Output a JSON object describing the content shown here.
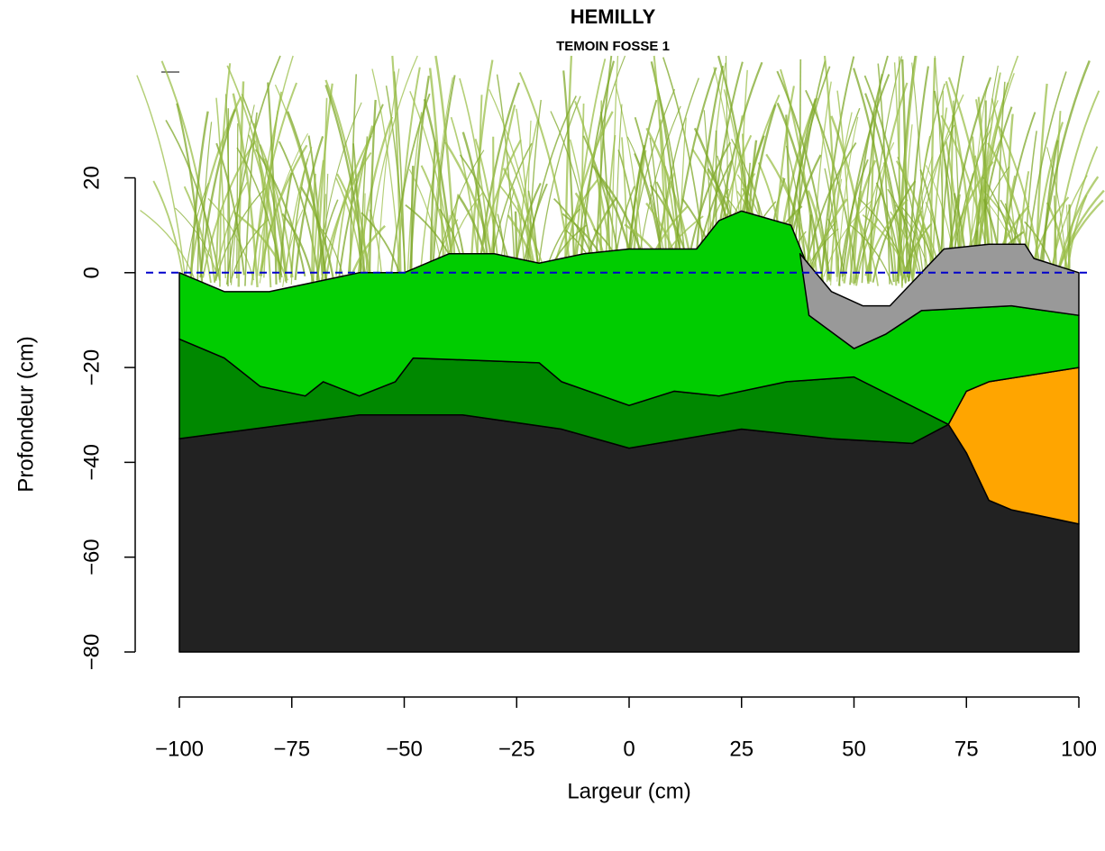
{
  "chart_data": {
    "type": "layers",
    "title": "HEMILLY",
    "subtitle": "TEMOIN FOSSE 1",
    "x_label": "Largeur (cm)",
    "y_label": "Profondeur (cm)",
    "xlim": [
      -100,
      100
    ],
    "ylim": [
      -80,
      20
    ],
    "xticks": [
      {
        "value": -100,
        "label": "−100"
      },
      {
        "value": -75,
        "label": "−75"
      },
      {
        "value": -50,
        "label": "−50"
      },
      {
        "value": -25,
        "label": "−25"
      },
      0,
      25,
      50,
      75,
      100
    ],
    "yticks": [
      {
        "value": -80,
        "label": "−80"
      },
      {
        "value": -60,
        "label": "−60"
      },
      {
        "value": -40,
        "label": "−40"
      },
      {
        "value": -20,
        "label": "−20"
      },
      0,
      20
    ],
    "reference_line": {
      "value": 0,
      "color": "#0000cc"
    },
    "series": [
      {
        "color": "#222222",
        "x": [
          -100,
          -60,
          -37,
          -15,
          0,
          25,
          45,
          63,
          71,
          75,
          80,
          85,
          100,
          100,
          -100
        ],
        "values": [
          -35,
          -30,
          -30,
          -33,
          -37,
          -33,
          -35,
          -36,
          -32,
          -38,
          -48,
          -50,
          -53,
          -80,
          -80
        ]
      },
      {
        "color": "#ffa500",
        "x": [
          71,
          75,
          80,
          100,
          100,
          85,
          80,
          75
        ],
        "values": [
          -32,
          -25,
          -23,
          -20,
          -53,
          -50,
          -48,
          -38
        ]
      },
      {
        "color": "#008800",
        "x": [
          -100,
          -90,
          -82,
          -72,
          -68,
          -60,
          -52,
          -48,
          -20,
          -15,
          0,
          10,
          20,
          35,
          50,
          71,
          63,
          45,
          25,
          0,
          -15,
          -37,
          -60,
          -100
        ],
        "values": [
          -14,
          -18,
          -24,
          -26,
          -23,
          -26,
          -23,
          -18,
          -19,
          -23,
          -28,
          -25,
          -26,
          -23,
          -22,
          -32,
          -36,
          -35,
          -33,
          -37,
          -33,
          -30,
          -30,
          -35
        ]
      },
      {
        "color": "#00cc00",
        "x": [
          -100,
          -90,
          -80,
          -70,
          -60,
          -50,
          -40,
          -30,
          -20,
          -10,
          0,
          15,
          20,
          25,
          36,
          39,
          40,
          50,
          57,
          65,
          85,
          100,
          100,
          80,
          75,
          71,
          50,
          35,
          20,
          10,
          0,
          -15,
          -20,
          -48,
          -52,
          -60,
          -68,
          -72,
          -82,
          -90,
          -100
        ],
        "values": [
          0,
          -4,
          -4,
          -2,
          0,
          0,
          4,
          4,
          2,
          4,
          5,
          5,
          11,
          13,
          10,
          3,
          -9,
          -16,
          -13,
          -8,
          -7,
          -9,
          -20,
          -23,
          -25,
          -32,
          -22,
          -23,
          -26,
          -25,
          -28,
          -23,
          -19,
          -18,
          -23,
          -26,
          -23,
          -26,
          -24,
          -18,
          -14
        ]
      },
      {
        "color": "#999999",
        "x": [
          38,
          45,
          52,
          58,
          70,
          80,
          88,
          90,
          100,
          100,
          85,
          65,
          57,
          50,
          40
        ],
        "values": [
          4,
          -4,
          -7,
          -7,
          5,
          6,
          6,
          3,
          0,
          -9,
          -7,
          -8,
          -13,
          -16,
          -9
        ]
      }
    ]
  }
}
